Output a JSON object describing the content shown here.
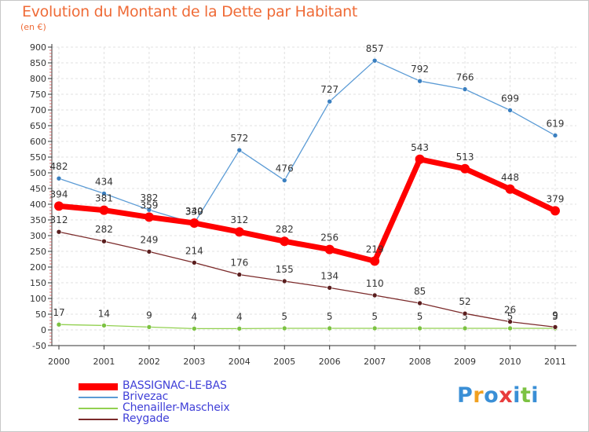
{
  "header": {
    "title": "Evolution du Montant de la Dette par Habitant",
    "subtitle": "(en €)"
  },
  "colors": {
    "title": "#ef6b37",
    "legend_text": "#4040d8",
    "axis": "#333333",
    "grid": "#e0e0e0"
  },
  "chart_data": {
    "type": "line",
    "title": "Evolution du Montant de la Dette par Habitant",
    "ylabel": "(en €)",
    "xlabel": "",
    "ylim": [
      -50,
      900
    ],
    "yticks": [
      -50,
      0,
      50,
      100,
      150,
      200,
      250,
      300,
      350,
      400,
      450,
      500,
      550,
      600,
      650,
      700,
      750,
      800,
      850,
      900
    ],
    "categories": [
      "2000",
      "2001",
      "2002",
      "2003",
      "2004",
      "2005",
      "2006",
      "2007",
      "2008",
      "2009",
      "2010",
      "2011"
    ],
    "grid": true,
    "legend_position": "bottom-left",
    "series": [
      {
        "name": "BASSIGNAC-LE-BAS",
        "color": "#ff0000",
        "values": [
          394,
          381,
          359,
          340,
          312,
          282,
          256,
          219,
          543,
          513,
          448,
          379
        ]
      },
      {
        "name": "Brivezac",
        "color": "#5b9bd5",
        "values": [
          482,
          434,
          382,
          339,
          572,
          476,
          727,
          857,
          792,
          766,
          699,
          619
        ]
      },
      {
        "name": "Chenailler-Mascheix",
        "color": "#92d050",
        "values": [
          17,
          14,
          9,
          4,
          4,
          5,
          5,
          5,
          5,
          5,
          5,
          5
        ]
      },
      {
        "name": "Reygade",
        "color": "#7b2a2a",
        "values": [
          312,
          282,
          249,
          214,
          176,
          155,
          134,
          110,
          85,
          52,
          26,
          9
        ]
      }
    ]
  },
  "logo": {
    "letters": [
      "P",
      "r",
      "o",
      "x",
      "i",
      "t",
      "i"
    ],
    "colors": [
      "#3a8fd6",
      "#f0a020",
      "#3a8fd6",
      "#e83c3c",
      "#3a8fd6",
      "#7cc242",
      "#3a8fd6"
    ]
  }
}
